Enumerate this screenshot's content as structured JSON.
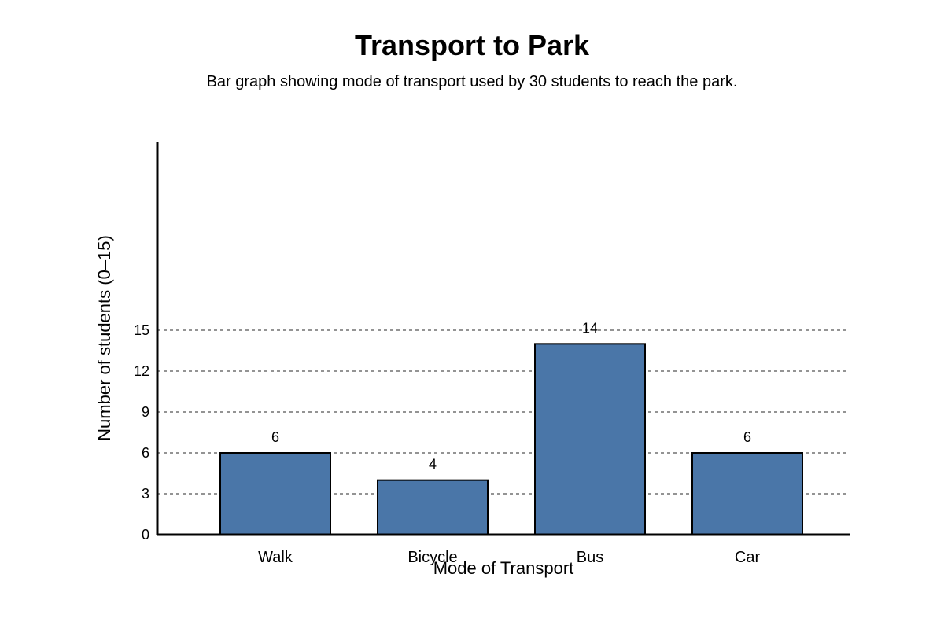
{
  "chart_data": {
    "type": "bar",
    "title": "Transport to Park",
    "subtitle": "Bar graph showing mode of transport used by 30 students to reach the park.",
    "xlabel": "Mode of Transport",
    "ylabel": "Number of students (0–15)",
    "categories": [
      "Walk",
      "Bicycle",
      "Bus",
      "Car"
    ],
    "values": [
      6,
      4,
      14,
      6
    ],
    "value_labels": [
      "6",
      "4",
      "14",
      "6"
    ],
    "y_ticks": [
      0,
      3,
      6,
      9,
      12,
      15
    ],
    "y_tick_labels": [
      "0",
      "3",
      "6",
      "9",
      "12",
      "15"
    ],
    "grid": true,
    "bar_color": "#4a76a8"
  }
}
